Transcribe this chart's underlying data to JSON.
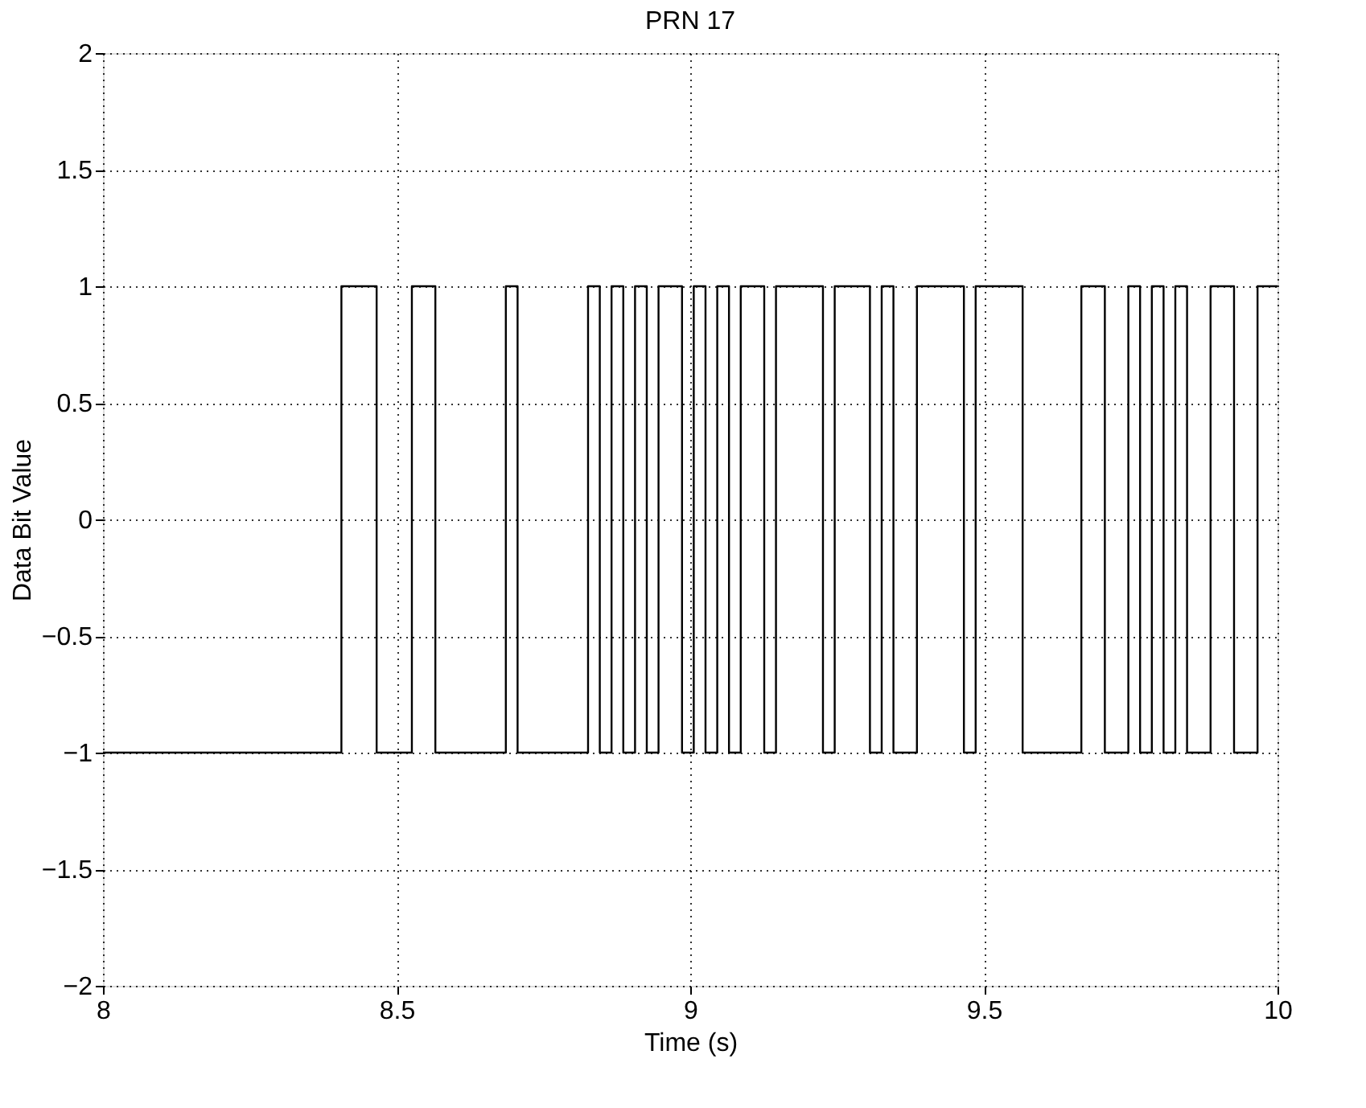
{
  "chart_data": {
    "type": "step",
    "title": "PRN 17",
    "xlabel": "Time (s)",
    "ylabel": "Data Bit Value",
    "x": [
      8,
      8.406,
      8.466,
      8.526,
      8.566,
      8.686,
      8.706,
      8.826,
      8.846,
      8.866,
      8.886,
      8.906,
      8.926,
      8.946,
      8.986,
      9.006,
      9.026,
      9.046,
      9.066,
      9.086,
      9.126,
      9.146,
      9.226,
      9.246,
      9.306,
      9.326,
      9.346,
      9.386,
      9.466,
      9.486,
      9.566,
      9.666,
      9.706,
      9.746,
      9.766,
      9.786,
      9.806,
      9.826,
      9.846,
      9.886,
      9.926,
      9.966,
      10
    ],
    "series": [
      {
        "color": "#000000",
        "values": [
          -1,
          1,
          -1,
          1,
          -1,
          1,
          -1,
          1,
          -1,
          1,
          -1,
          1,
          -1,
          1,
          -1,
          1,
          -1,
          1,
          -1,
          1,
          -1,
          1,
          -1,
          1,
          -1,
          1,
          -1,
          1,
          -1,
          1,
          -1,
          1,
          -1,
          1,
          -1,
          1,
          -1,
          1,
          -1,
          1,
          -1,
          1,
          1
        ]
      }
    ],
    "xlim": [
      8,
      10
    ],
    "xticks": [
      8,
      8.5,
      9,
      9.5,
      10
    ],
    "ylim": [
      -2,
      2
    ],
    "yticks": [
      {
        "value": -2,
        "label": "−2"
      },
      {
        "value": -1.5,
        "label": "−1.5"
      },
      {
        "value": -1,
        "label": "−1"
      },
      {
        "value": -0.5,
        "label": "−0.5"
      },
      0,
      0.5,
      1,
      1.5,
      2
    ],
    "grid": true,
    "line_style": "solid",
    "marker": "none"
  }
}
